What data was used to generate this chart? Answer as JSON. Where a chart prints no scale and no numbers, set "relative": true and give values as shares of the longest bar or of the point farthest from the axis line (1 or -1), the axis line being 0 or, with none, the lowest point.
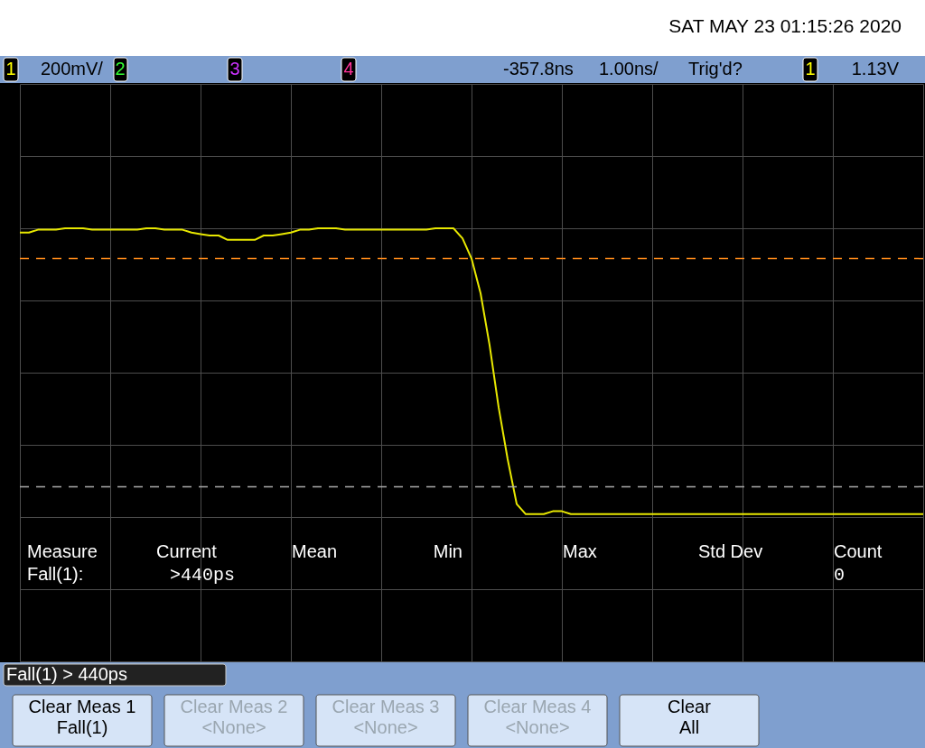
{
  "chart_data": {
    "type": "line",
    "relative": true,
    "categories": [
      null,
      null,
      null,
      null,
      null,
      null,
      null,
      null,
      null,
      null,
      null,
      null,
      null,
      null,
      null,
      null,
      null,
      null,
      null,
      null,
      null,
      null,
      null,
      null,
      null,
      null,
      null,
      null,
      null,
      null,
      null,
      null,
      null,
      null,
      null,
      null,
      null,
      null,
      null,
      null,
      null,
      null,
      null,
      null,
      null,
      null,
      null,
      null,
      null,
      null,
      null,
      null,
      null,
      null,
      null,
      null,
      null,
      null,
      null,
      null,
      null,
      null,
      null,
      null,
      null,
      null,
      null,
      null,
      null,
      null,
      null,
      null,
      null,
      null,
      null,
      null,
      null,
      null,
      null,
      null,
      null,
      null,
      null,
      null,
      null,
      null,
      null,
      null,
      null,
      null,
      null,
      null,
      null,
      null,
      null,
      null,
      null,
      null,
      null,
      null,
      null
    ],
    "series": [
      {
        "color": "#e8e800",
        "values": [
          0.97,
          0.97,
          0.99,
          0.99,
          0.99,
          1.0,
          1.0,
          1.0,
          0.99,
          0.99,
          0.99,
          0.99,
          0.99,
          0.99,
          1.0,
          1.0,
          0.99,
          0.99,
          0.99,
          0.97,
          0.96,
          0.95,
          0.95,
          0.92,
          0.92,
          0.92,
          0.92,
          0.95,
          0.95,
          0.96,
          0.97,
          0.99,
          0.99,
          1.0,
          1.0,
          1.0,
          0.99,
          0.99,
          0.99,
          0.99,
          0.99,
          0.99,
          0.99,
          0.99,
          0.99,
          0.99,
          1.0,
          1.0,
          1.0,
          0.93,
          0.79,
          0.55,
          0.19,
          -0.24,
          -0.6,
          -0.91,
          -0.98,
          -0.98,
          -0.98,
          -0.96,
          -0.96,
          -0.98,
          -0.98,
          -0.98,
          -0.98,
          -0.98,
          -0.98,
          -0.98,
          -0.98,
          -0.98,
          -0.98,
          -0.98,
          -0.98,
          -0.98,
          -0.98,
          -0.98,
          -0.98,
          -0.98,
          -0.98,
          -0.98,
          -0.98,
          -0.98,
          -0.98,
          -0.98,
          -0.98,
          -0.98,
          -0.98,
          -0.98,
          -0.98,
          -0.98,
          -0.98,
          -0.98,
          -0.98,
          -0.98,
          -0.98,
          -0.98,
          -0.98,
          -0.98,
          -0.98,
          -0.98,
          -0.98
        ]
      }
    ],
    "grid": true,
    "marker": "none",
    "line_style": "solid",
    "ref_lines": [
      {
        "axis": "y",
        "value": 0.79,
        "color": "#ff8c1a",
        "line_style": "dashed"
      },
      {
        "axis": "y",
        "value": -0.79,
        "color": "#aaaaaa",
        "line_style": "dashed"
      }
    ],
    "annotations": [
      "SAT MAY 23 01:15:26 2020",
      "1",
      "200mV/",
      "2",
      "3",
      "4",
      "-357.8ns",
      "1.00ns/",
      "Trig'd?",
      "1",
      "1.13V",
      "Measure",
      "Current",
      "Mean",
      "Min",
      "Max",
      "Std Dev",
      "Count",
      "Fall(1):",
      ">440ps",
      "0",
      "Fall(1) > 440ps",
      "Clear Meas 1",
      "Fall(1)",
      "Clear Meas 2",
      "<None>",
      "Clear Meas 3",
      "<None>",
      "Clear Meas 4",
      "<None>",
      "Clear",
      "All"
    ]
  }
}
